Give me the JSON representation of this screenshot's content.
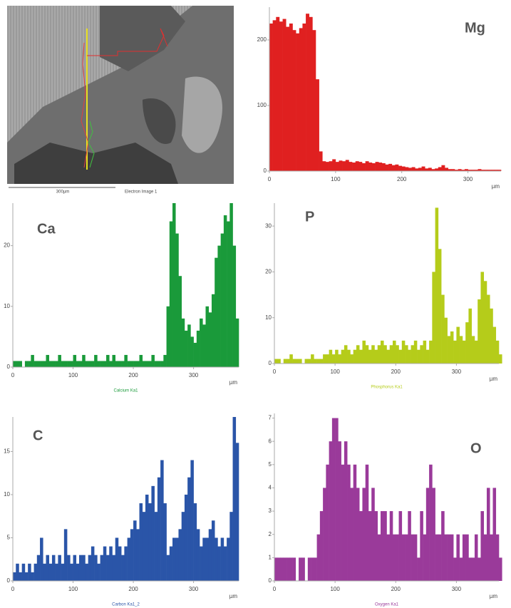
{
  "image": {
    "scale_label": "300µm",
    "caption": "Electron Image 1"
  },
  "chart_data": [
    {
      "type": "bar",
      "annotation": "Mg",
      "xlabel": "µm",
      "color": "#e02020",
      "xlim": [
        0,
        350
      ],
      "ylim": [
        0,
        250
      ],
      "xticks": [
        0,
        100,
        200,
        300
      ],
      "yticks": [
        0,
        100,
        200
      ],
      "x": [
        0,
        5,
        10,
        15,
        20,
        25,
        30,
        35,
        40,
        45,
        50,
        55,
        60,
        65,
        70,
        75,
        80,
        85,
        90,
        95,
        100,
        105,
        110,
        115,
        120,
        125,
        130,
        135,
        140,
        145,
        150,
        155,
        160,
        165,
        170,
        175,
        180,
        185,
        190,
        195,
        200,
        205,
        210,
        215,
        220,
        225,
        230,
        235,
        240,
        245,
        250,
        255,
        260,
        265,
        270,
        275,
        280,
        285,
        290,
        295,
        300,
        305,
        310,
        315,
        320,
        325,
        330,
        335,
        340,
        345
      ],
      "values": [
        225,
        230,
        235,
        228,
        232,
        220,
        225,
        215,
        210,
        218,
        225,
        240,
        235,
        215,
        140,
        30,
        15,
        14,
        15,
        18,
        14,
        16,
        15,
        17,
        14,
        13,
        15,
        14,
        12,
        15,
        13,
        12,
        14,
        13,
        12,
        10,
        11,
        9,
        10,
        8,
        7,
        6,
        5,
        6,
        4,
        5,
        7,
        4,
        5,
        3,
        4,
        6,
        9,
        5,
        3,
        3,
        2,
        3,
        2,
        3,
        2,
        2,
        2,
        3,
        2,
        2,
        2,
        2,
        2,
        2
      ]
    },
    {
      "type": "bar",
      "annotation": "Ca",
      "xlabel": "µm",
      "caption": "Calcium Ka1",
      "color": "#1a9a3a",
      "xlim": [
        0,
        375
      ],
      "ylim": [
        0,
        27
      ],
      "xticks": [
        0,
        100,
        200,
        300
      ],
      "yticks": [
        0,
        10,
        20
      ],
      "x": [
        0,
        5,
        10,
        15,
        20,
        25,
        30,
        35,
        40,
        45,
        50,
        55,
        60,
        65,
        70,
        75,
        80,
        85,
        90,
        95,
        100,
        105,
        110,
        115,
        120,
        125,
        130,
        135,
        140,
        145,
        150,
        155,
        160,
        165,
        170,
        175,
        180,
        185,
        190,
        195,
        200,
        205,
        210,
        215,
        220,
        225,
        230,
        235,
        240,
        245,
        250,
        255,
        260,
        265,
        270,
        275,
        280,
        285,
        290,
        295,
        300,
        305,
        310,
        315,
        320,
        325,
        330,
        335,
        340,
        345,
        350,
        355,
        360,
        365,
        370
      ],
      "values": [
        1,
        1,
        1,
        0,
        1,
        1,
        2,
        1,
        1,
        1,
        1,
        2,
        1,
        1,
        1,
        2,
        1,
        1,
        1,
        1,
        2,
        1,
        1,
        2,
        1,
        1,
        1,
        2,
        1,
        1,
        1,
        2,
        1,
        2,
        1,
        1,
        1,
        2,
        1,
        1,
        1,
        1,
        2,
        1,
        1,
        1,
        2,
        1,
        1,
        1,
        2,
        10,
        24,
        27,
        22,
        15,
        8,
        6,
        7,
        5,
        4,
        6,
        8,
        7,
        10,
        9,
        12,
        18,
        20,
        22,
        25,
        24,
        27,
        20,
        8
      ]
    },
    {
      "type": "bar",
      "annotation": "P",
      "xlabel": "µm",
      "caption": "Phosphorus Ka1",
      "color": "#b5cc1a",
      "xlim": [
        0,
        370
      ],
      "ylim": [
        0,
        35
      ],
      "xticks": [
        0,
        100,
        200,
        300
      ],
      "yticks": [
        0,
        10,
        20,
        30
      ],
      "x": [
        0,
        5,
        10,
        15,
        20,
        25,
        30,
        35,
        40,
        45,
        50,
        55,
        60,
        65,
        70,
        75,
        80,
        85,
        90,
        95,
        100,
        105,
        110,
        115,
        120,
        125,
        130,
        135,
        140,
        145,
        150,
        155,
        160,
        165,
        170,
        175,
        180,
        185,
        190,
        195,
        200,
        205,
        210,
        215,
        220,
        225,
        230,
        235,
        240,
        245,
        250,
        255,
        260,
        265,
        270,
        275,
        280,
        285,
        290,
        295,
        300,
        305,
        310,
        315,
        320,
        325,
        330,
        335,
        340,
        345,
        350,
        355,
        360,
        365,
        370
      ],
      "values": [
        1,
        1,
        0,
        1,
        1,
        2,
        1,
        1,
        1,
        0,
        1,
        1,
        2,
        1,
        1,
        1,
        2,
        2,
        3,
        2,
        3,
        2,
        3,
        4,
        3,
        2,
        3,
        4,
        3,
        5,
        4,
        3,
        4,
        3,
        4,
        5,
        4,
        3,
        4,
        5,
        4,
        3,
        5,
        4,
        3,
        4,
        5,
        3,
        4,
        5,
        3,
        5,
        20,
        34,
        25,
        15,
        10,
        6,
        7,
        5,
        8,
        6,
        5,
        9,
        12,
        6,
        5,
        14,
        20,
        18,
        15,
        12,
        8,
        5,
        2
      ]
    },
    {
      "type": "bar",
      "annotation": "C",
      "xlabel": "µm",
      "caption": "Carbon Ka1_2",
      "color": "#2a55a8",
      "xlim": [
        0,
        375
      ],
      "ylim": [
        0,
        19
      ],
      "xticks": [
        0,
        100,
        200,
        300
      ],
      "yticks": [
        0,
        5,
        10,
        15
      ],
      "x": [
        0,
        5,
        10,
        15,
        20,
        25,
        30,
        35,
        40,
        45,
        50,
        55,
        60,
        65,
        70,
        75,
        80,
        85,
        90,
        95,
        100,
        105,
        110,
        115,
        120,
        125,
        130,
        135,
        140,
        145,
        150,
        155,
        160,
        165,
        170,
        175,
        180,
        185,
        190,
        195,
        200,
        205,
        210,
        215,
        220,
        225,
        230,
        235,
        240,
        245,
        250,
        255,
        260,
        265,
        270,
        275,
        280,
        285,
        290,
        295,
        300,
        305,
        310,
        315,
        320,
        325,
        330,
        335,
        340,
        345,
        350,
        355,
        360,
        365,
        370
      ],
      "values": [
        1,
        2,
        1,
        2,
        1,
        2,
        1,
        2,
        3,
        5,
        2,
        3,
        2,
        3,
        2,
        3,
        2,
        6,
        3,
        2,
        3,
        2,
        3,
        3,
        2,
        3,
        4,
        3,
        2,
        3,
        4,
        3,
        4,
        3,
        5,
        4,
        3,
        4,
        5,
        6,
        7,
        6,
        9,
        8,
        10,
        9,
        11,
        8,
        12,
        14,
        9,
        3,
        4,
        5,
        5,
        6,
        8,
        10,
        12,
        14,
        9,
        6,
        4,
        5,
        5,
        6,
        7,
        5,
        4,
        5,
        4,
        5,
        8,
        19,
        16
      ]
    },
    {
      "type": "bar",
      "annotation": "O",
      "xlabel": "µm",
      "caption": "Oxygen Ka1",
      "color": "#9a3a9a",
      "xlim": [
        0,
        370
      ],
      "ylim": [
        0,
        7.2
      ],
      "xticks": [
        0,
        100,
        200,
        300
      ],
      "yticks": [
        0,
        1,
        2,
        3,
        4,
        5,
        6,
        7
      ],
      "x": [
        0,
        5,
        10,
        15,
        20,
        25,
        30,
        35,
        40,
        45,
        50,
        55,
        60,
        65,
        70,
        75,
        80,
        85,
        90,
        95,
        100,
        105,
        110,
        115,
        120,
        125,
        130,
        135,
        140,
        145,
        150,
        155,
        160,
        165,
        170,
        175,
        180,
        185,
        190,
        195,
        200,
        205,
        210,
        215,
        220,
        225,
        230,
        235,
        240,
        245,
        250,
        255,
        260,
        265,
        270,
        275,
        280,
        285,
        290,
        295,
        300,
        305,
        310,
        315,
        320,
        325,
        330,
        335,
        340,
        345,
        350,
        355,
        360,
        365,
        370
      ],
      "values": [
        1,
        1,
        1,
        1,
        1,
        1,
        1,
        0,
        1,
        1,
        0,
        1,
        1,
        1,
        2,
        3,
        4,
        5,
        6,
        7,
        7,
        6,
        5,
        6,
        5,
        4,
        5,
        4,
        3,
        4,
        5,
        3,
        4,
        3,
        2,
        3,
        3,
        2,
        3,
        2,
        2,
        3,
        2,
        2,
        3,
        2,
        2,
        1,
        3,
        2,
        4,
        5,
        4,
        2,
        2,
        3,
        2,
        2,
        2,
        1,
        2,
        1,
        2,
        2,
        1,
        1,
        2,
        1,
        3,
        2,
        4,
        2,
        4,
        2,
        1
      ]
    }
  ]
}
